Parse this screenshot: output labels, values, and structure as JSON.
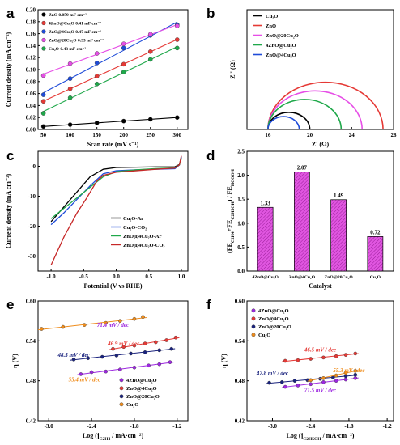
{
  "chart_data": [
    {
      "panel": "a",
      "type": "scatter",
      "xlabel": "Scan rate (mV s⁻¹)",
      "ylabel": "Current density (mA cm⁻²)",
      "xlim": [
        40,
        320
      ],
      "ylim": [
        0,
        0.2
      ],
      "xticks": [
        "50",
        "100",
        "150",
        "200",
        "250",
        "300"
      ],
      "yticks": [
        "0.00",
        "0.02",
        "0.04",
        "0.06",
        "0.08",
        "0.10",
        "0.12",
        "0.14",
        "0.16",
        "0.18",
        "0.20"
      ],
      "legend_position": "top-left",
      "x": [
        50,
        100,
        150,
        200,
        250,
        300
      ],
      "series": [
        {
          "name": "4ZnO@Cu₂O  0.41 mF cm⁻²",
          "color": "#e53935",
          "values": [
            0.047,
            0.068,
            0.089,
            0.109,
            0.13,
            0.15
          ]
        },
        {
          "name": "ZnO@4Cu₂O  0.47 mF cm⁻²",
          "color": "#1e4bd8",
          "values": [
            0.058,
            0.085,
            0.111,
            0.136,
            0.157,
            0.175
          ]
        },
        {
          "name": "ZnO@20Cu₂O  0.33 mF cm⁻²",
          "color": "#e64ee6",
          "values": [
            0.09,
            0.11,
            0.127,
            0.143,
            0.159,
            0.173
          ]
        },
        {
          "name": "Cu₂O  0.43 mF cm⁻²",
          "color": "#1fa84a",
          "values": [
            0.027,
            0.053,
            0.076,
            0.096,
            0.117,
            0.136
          ]
        },
        {
          "name": "ZnO  0.059 mF cm⁻²",
          "color": "#000000",
          "values": [
            0.005,
            0.008,
            0.011,
            0.014,
            0.017,
            0.02
          ]
        }
      ]
    },
    {
      "panel": "b",
      "type": "line",
      "xlabel": "Z' (Ω)",
      "ylabel": "Z'' (Ω)",
      "xlim": [
        14,
        28
      ],
      "ylim": [
        0,
        7
      ],
      "xticks": [
        "16",
        "20",
        "24",
        "28"
      ],
      "legend_position": "top-left",
      "series": [
        {
          "name": "Cu₂O",
          "color": "#000000",
          "z_start": 16.0,
          "z_end": 20.0
        },
        {
          "name": "ZnO",
          "color": "#e53935",
          "z_start": 16.0,
          "z_end": 27.0
        },
        {
          "name": "ZnO@20Cu₂O",
          "color": "#e64ee6",
          "z_start": 16.0,
          "z_end": 25.0
        },
        {
          "name": "4ZnO@Cu₂O",
          "color": "#1fa84a",
          "z_start": 16.0,
          "z_end": 23.0
        },
        {
          "name": "ZnO@4Cu₂O",
          "color": "#1e4bd8",
          "z_start": 16.0,
          "z_end": 19.0
        }
      ]
    },
    {
      "panel": "c",
      "type": "line",
      "xlabel": "Potential (V vs RHE)",
      "ylabel": "Current density (mA cm⁻²)",
      "xlim": [
        -1.2,
        1.1
      ],
      "ylim": [
        -35,
        5
      ],
      "xticks": [
        "-1.0",
        "-0.5",
        "0.0",
        "0.5",
        "1.0"
      ],
      "yticks": [
        "0",
        "-10",
        "-20",
        "-30"
      ],
      "legend_position": "center-right",
      "series": [
        {
          "name": "Cu₂O-Ar",
          "color": "#000000",
          "x": [
            -1.0,
            -0.8,
            -0.6,
            -0.4,
            -0.2,
            0.0,
            0.3,
            0.6,
            0.9,
            0.97,
            1.0
          ],
          "y": [
            -18.5,
            -13.5,
            -8.5,
            -3.5,
            -1.0,
            -0.4,
            -0.3,
            -0.2,
            -0.2,
            0.6,
            3.0
          ]
        },
        {
          "name": "Cu₂O-CO₂",
          "color": "#1e4bd8",
          "x": [
            -1.0,
            -0.8,
            -0.6,
            -0.4,
            -0.2,
            0.0,
            0.3,
            0.6,
            0.9,
            0.97,
            1.0
          ],
          "y": [
            -19.5,
            -15.5,
            -11.0,
            -6.5,
            -2.5,
            -1.5,
            -1.2,
            -1.0,
            -0.8,
            0.4,
            3.2
          ]
        },
        {
          "name": "ZnO@4Cu₂O-Ar",
          "color": "#1fa84a",
          "x": [
            -1.0,
            -0.8,
            -0.6,
            -0.4,
            -0.2,
            0.0,
            0.3,
            0.6,
            0.9,
            0.97,
            1.0
          ],
          "y": [
            -17.5,
            -14.0,
            -10.5,
            -7.0,
            -3.5,
            -1.8,
            -1.2,
            -0.8,
            -0.5,
            0.5,
            2.5
          ]
        },
        {
          "name": "ZnO@4Cu₂O-CO₂",
          "color": "#c62828",
          "x": [
            -1.0,
            -0.8,
            -0.6,
            -0.45,
            -0.3,
            -0.2,
            0.0,
            0.3,
            0.6,
            0.9,
            0.97,
            1.0
          ],
          "y": [
            -33.0,
            -23.5,
            -15.5,
            -10.5,
            -5.0,
            -3.0,
            -2.0,
            -1.5,
            -1.0,
            -0.6,
            0.5,
            3.5
          ]
        }
      ]
    },
    {
      "panel": "d",
      "type": "bar",
      "xlabel": "Catalyst",
      "ylabel": "(FE₁ + FE₂) / FE₃",
      "ylabel_parts": {
        "open": "(FE",
        "sub1": "C2H4",
        "plus": "+FE",
        "sub2": "C2H5OH",
        "close": ") / FE",
        "sub3": "HCOOH"
      },
      "ylim": [
        0,
        2.5
      ],
      "yticks": [
        "0.0",
        "0.5",
        "1.0",
        "1.5",
        "2.0",
        "2.5"
      ],
      "categories": [
        "4ZnO@Cu₂O",
        "ZnO@4Cu₂O",
        "ZnO@20Cu₂O",
        "Cu₂O"
      ],
      "values": [
        1.33,
        2.07,
        1.49,
        0.72
      ],
      "labels": [
        "1.33",
        "2.07",
        "1.49",
        "0.72"
      ]
    },
    {
      "panel": "e",
      "type": "scatter",
      "xlabel_parts": {
        "main": "Log (j",
        "sub": "C2H4",
        "rest": " / mA·cm⁻²)"
      },
      "ylabel": "η (V)",
      "xlim": [
        -3.15,
        -1.05
      ],
      "ylim": [
        0.42,
        0.6
      ],
      "xticks": [
        "-3.0",
        "-2.4",
        "-1.8",
        "-1.2"
      ],
      "yticks": [
        "0.60",
        "0.54",
        "0.48",
        "0.42"
      ],
      "legend_position": "bottom-right",
      "series": [
        {
          "name": "4ZnO@Cu₂O",
          "color": "#9c27e0",
          "slope_label": "71.4 mV / dec",
          "x": [
            -2.55,
            -2.4,
            -2.2,
            -2.0,
            -1.8,
            -1.6,
            -1.45,
            -1.3
          ],
          "y": [
            0.49,
            0.493,
            0.494,
            0.497,
            0.5,
            0.503,
            0.505,
            0.508
          ]
        },
        {
          "name": "ZnO@4Cu₂O",
          "color": "#e53935",
          "slope_label": "46.9 mV / dec",
          "x": [
            -2.1,
            -1.95,
            -1.8,
            -1.65,
            -1.5,
            -1.35,
            -1.22
          ],
          "y": [
            0.528,
            0.531,
            0.533,
            0.536,
            0.538,
            0.541,
            0.545
          ]
        },
        {
          "name": "ZnO@20Cu₂O",
          "color": "#1a237e",
          "slope_label": "48.5 mV / dec",
          "x": [
            -2.65,
            -2.45,
            -2.25,
            -2.05,
            -1.85,
            -1.65,
            -1.45,
            -1.28
          ],
          "y": [
            0.512,
            0.514,
            0.516,
            0.518,
            0.521,
            0.523,
            0.526,
            0.528
          ]
        },
        {
          "name": "Cu₂O",
          "color": "#ef8c1b",
          "slope_label": "55.4 mV / dec",
          "x": [
            -3.1,
            -2.8,
            -2.5,
            -2.2,
            -2.0,
            -1.8,
            -1.68
          ],
          "y": [
            0.558,
            0.561,
            0.564,
            0.567,
            0.57,
            0.573,
            0.576
          ]
        }
      ]
    },
    {
      "panel": "f",
      "type": "scatter",
      "xlabel_parts": {
        "main": "Log (j",
        "sub": "C2H5OH",
        "rest": " / mA·cm⁻²)"
      },
      "ylabel": "η (V)",
      "xlim": [
        -3.4,
        -1.1
      ],
      "ylim": [
        0.42,
        0.6
      ],
      "xticks": [
        "-3.0",
        "-2.4",
        "-1.8",
        "-1.2"
      ],
      "yticks": [
        "0.60",
        "0.54",
        "0.48",
        "0.42"
      ],
      "legend_position": "top-left",
      "series": [
        {
          "name": "4ZnO@Cu₂O",
          "color": "#9c27e0",
          "slope_label": "71.5 mV / dec",
          "x": [
            -2.8,
            -2.6,
            -2.4,
            -2.2,
            -2.0,
            -1.85,
            -1.7
          ],
          "y": [
            0.471,
            0.473,
            0.475,
            0.478,
            0.48,
            0.482,
            0.484
          ]
        },
        {
          "name": "ZnO@4Cu₂O",
          "color": "#e53935",
          "slope_label": "46.5 mV / dec",
          "x": [
            -2.8,
            -2.6,
            -2.4,
            -2.2,
            -2.0,
            -1.85,
            -1.7
          ],
          "y": [
            0.51,
            0.511,
            0.513,
            0.515,
            0.517,
            0.519,
            0.521
          ]
        },
        {
          "name": "ZnO@20Cu₂O",
          "color": "#1a237e",
          "slope_label": "47.8 mV / dec",
          "x": [
            -3.05,
            -2.85,
            -2.65,
            -2.45,
            -2.25,
            -2.05,
            -1.85,
            -1.7
          ],
          "y": [
            0.477,
            0.478,
            0.48,
            0.481,
            0.483,
            0.485,
            0.487,
            0.489
          ]
        },
        {
          "name": "Cu₂O",
          "color": "#ef8c1b",
          "slope_label": "55.3 mV / dec",
          "x": [
            -2.4,
            -2.2,
            -2.0,
            -1.85,
            -1.7
          ],
          "y": [
            0.481,
            0.484,
            0.488,
            0.492,
            0.495
          ]
        }
      ]
    }
  ]
}
